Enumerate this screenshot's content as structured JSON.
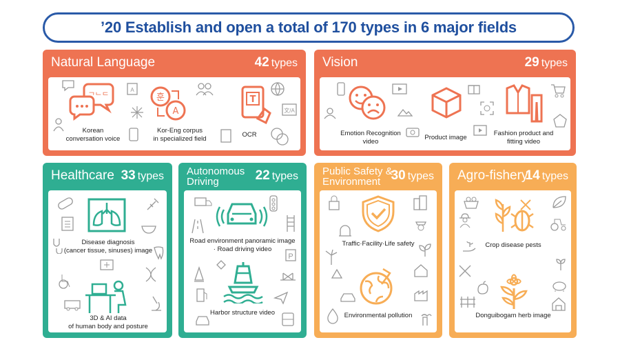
{
  "banner": {
    "title": "’20 Establish and open a total of 170 types in 6 major fields"
  },
  "colors": {
    "orange": "#ee7352",
    "teal": "#2fae92",
    "amber": "#f7ad56",
    "navy": "#2a5aa8"
  },
  "cards": {
    "natural_language": {
      "name": "Natural Language",
      "count": "42",
      "unit": "types",
      "items": [
        "Korean conversation voice",
        "Kor-Eng corpus in specialized field",
        "OCR"
      ],
      "item_lines": [
        [
          "Korean",
          "conversation voice"
        ],
        [
          "Kor-Eng corpus",
          "in specialized field"
        ],
        [
          "OCR"
        ]
      ]
    },
    "vision": {
      "name": "Vision",
      "count": "29",
      "unit": "types",
      "item_lines": [
        [
          "Emotion Recognition",
          "video"
        ],
        [
          "Product image"
        ],
        [
          "Fashion product and",
          "fitting video"
        ]
      ]
    },
    "healthcare": {
      "name": "Healthcare",
      "count": "33",
      "unit": "types",
      "item_lines": [
        [
          "Disease diagnosis",
          "(cancer tissue, sinuses) image"
        ],
        [
          "3D & AI data",
          "of human body and posture"
        ]
      ]
    },
    "autonomous": {
      "name_lines": [
        "Autonomous",
        "Driving"
      ],
      "count": "22",
      "unit": "types",
      "item_lines": [
        [
          "Road environment  panoramic image",
          "· Road driving video"
        ],
        [
          "Harbor structure video"
        ]
      ]
    },
    "safety": {
      "name_lines": [
        "Public Safety &",
        "Environment"
      ],
      "count": "30",
      "unit": "types",
      "item_lines": [
        [
          "Traffic·Facility·Life safety"
        ],
        [
          "Environmental  pollution"
        ]
      ]
    },
    "agro": {
      "name": "Agro-fishery",
      "count": "14",
      "unit": "types",
      "item_lines": [
        [
          "Crop disease pests"
        ],
        [
          "Donguibogam herb image"
        ]
      ]
    }
  }
}
